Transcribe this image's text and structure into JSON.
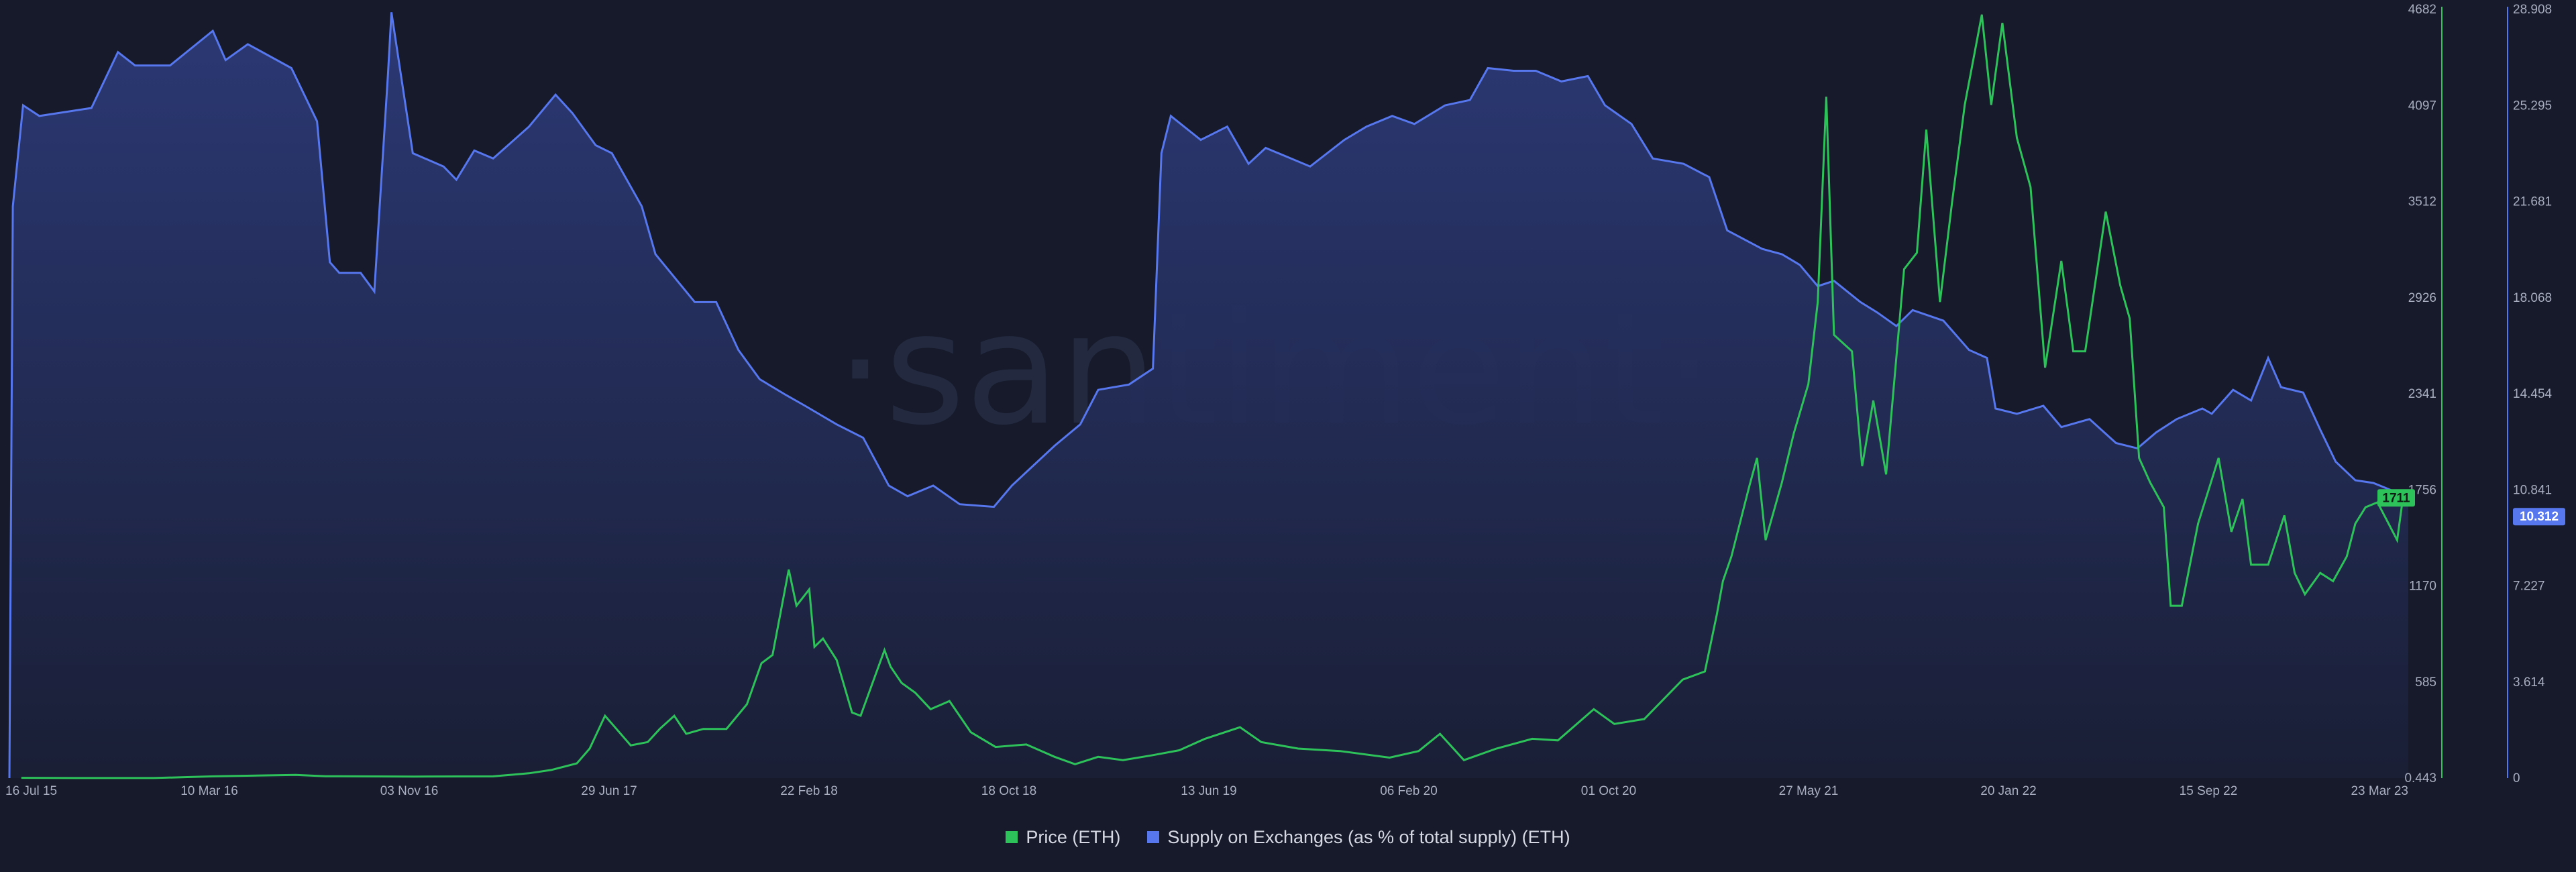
{
  "colors": {
    "background": "#161a2a",
    "price": "#2ec35a",
    "supply": "#5777ee",
    "axis_price": "#2ec35a",
    "axis_supply": "#5777ee",
    "watermark": "#232a40"
  },
  "watermark": "·santiment·",
  "chart_data": {
    "type": "line",
    "x_ticks": [
      "16 Jul 15",
      "10 Mar 16",
      "03 Nov 16",
      "29 Jun 17",
      "22 Feb 18",
      "18 Oct 18",
      "13 Jun 19",
      "06 Feb 20",
      "01 Oct 20",
      "27 May 21",
      "20 Jan 22",
      "15 Sep 22",
      "23 Mar 23"
    ],
    "y_left_ticks": [
      "4682",
      "4097",
      "3512",
      "2926",
      "2341",
      "1756",
      "1170",
      "585",
      "0.443"
    ],
    "y_right_ticks": [
      "28.908",
      "25.295",
      "21.681",
      "18.068",
      "14.454",
      "10.841",
      "7.227",
      "3.614",
      "0"
    ],
    "y_left_range": [
      0.443,
      4682
    ],
    "y_right_range": [
      0,
      28.908
    ],
    "x_range": [
      "2015-07-16",
      "2023-03-23"
    ],
    "current_values": {
      "price": "1711",
      "supply": "10.312"
    },
    "series": [
      {
        "name": "Price (ETH)",
        "axis": "left",
        "color": "#2ec35a",
        "points": [
          [
            "2015-07-30",
            2
          ],
          [
            "2015-10-01",
            1
          ],
          [
            "2016-01-01",
            1
          ],
          [
            "2016-03-10",
            11
          ],
          [
            "2016-06-15",
            20
          ],
          [
            "2016-07-20",
            12
          ],
          [
            "2016-11-01",
            10
          ],
          [
            "2017-02-01",
            11
          ],
          [
            "2017-03-15",
            30
          ],
          [
            "2017-04-10",
            50
          ],
          [
            "2017-05-10",
            90
          ],
          [
            "2017-05-25",
            180
          ],
          [
            "2017-06-12",
            380
          ],
          [
            "2017-06-22",
            320
          ],
          [
            "2017-07-12",
            200
          ],
          [
            "2017-08-01",
            220
          ],
          [
            "2017-08-15",
            300
          ],
          [
            "2017-09-01",
            380
          ],
          [
            "2017-09-15",
            270
          ],
          [
            "2017-10-05",
            300
          ],
          [
            "2017-11-01",
            300
          ],
          [
            "2017-11-25",
            450
          ],
          [
            "2017-12-12",
            700
          ],
          [
            "2017-12-25",
            750
          ],
          [
            "2018-01-13",
            1270
          ],
          [
            "2018-01-22",
            1050
          ],
          [
            "2018-02-06",
            1150
          ],
          [
            "2018-02-12",
            800
          ],
          [
            "2018-02-22",
            850
          ],
          [
            "2018-03-10",
            720
          ],
          [
            "2018-03-28",
            400
          ],
          [
            "2018-04-07",
            380
          ],
          [
            "2018-05-05",
            780
          ],
          [
            "2018-05-12",
            680
          ],
          [
            "2018-05-25",
            580
          ],
          [
            "2018-06-10",
            520
          ],
          [
            "2018-06-28",
            420
          ],
          [
            "2018-07-20",
            470
          ],
          [
            "2018-08-14",
            280
          ],
          [
            "2018-09-12",
            190
          ],
          [
            "2018-10-18",
            205
          ],
          [
            "2018-11-20",
            130
          ],
          [
            "2018-12-14",
            85
          ],
          [
            "2019-01-10",
            130
          ],
          [
            "2019-02-08",
            110
          ],
          [
            "2019-03-15",
            140
          ],
          [
            "2019-04-15",
            170
          ],
          [
            "2019-05-15",
            240
          ],
          [
            "2019-06-25",
            310
          ],
          [
            "2019-07-20",
            220
          ],
          [
            "2019-09-01",
            180
          ],
          [
            "2019-10-20",
            165
          ],
          [
            "2019-12-17",
            125
          ],
          [
            "2020-01-20",
            165
          ],
          [
            "2020-02-14",
            270
          ],
          [
            "2020-03-13",
            110
          ],
          [
            "2020-04-20",
            180
          ],
          [
            "2020-06-01",
            240
          ],
          [
            "2020-07-01",
            230
          ],
          [
            "2020-08-12",
            420
          ],
          [
            "2020-09-05",
            330
          ],
          [
            "2020-10-10",
            360
          ],
          [
            "2020-11-24",
            600
          ],
          [
            "2020-12-20",
            650
          ],
          [
            "2021-01-03",
            1000
          ],
          [
            "2021-01-10",
            1200
          ],
          [
            "2021-01-20",
            1350
          ],
          [
            "2021-02-10",
            1780
          ],
          [
            "2021-02-19",
            1950
          ],
          [
            "2021-03-01",
            1450
          ],
          [
            "2021-03-20",
            1800
          ],
          [
            "2021-04-03",
            2100
          ],
          [
            "2021-04-20",
            2400
          ],
          [
            "2021-05-01",
            2900
          ],
          [
            "2021-05-11",
            4150
          ],
          [
            "2021-05-20",
            2700
          ],
          [
            "2021-06-10",
            2600
          ],
          [
            "2021-06-22",
            1900
          ],
          [
            "2021-07-05",
            2300
          ],
          [
            "2021-07-20",
            1850
          ],
          [
            "2021-08-10",
            3100
          ],
          [
            "2021-08-25",
            3200
          ],
          [
            "2021-09-05",
            3950
          ],
          [
            "2021-09-21",
            2900
          ],
          [
            "2021-10-05",
            3500
          ],
          [
            "2021-10-20",
            4100
          ],
          [
            "2021-11-09",
            4650
          ],
          [
            "2021-11-20",
            4100
          ],
          [
            "2021-12-03",
            4600
          ],
          [
            "2021-12-20",
            3900
          ],
          [
            "2022-01-05",
            3600
          ],
          [
            "2022-01-22",
            2500
          ],
          [
            "2022-02-10",
            3150
          ],
          [
            "2022-02-24",
            2600
          ],
          [
            "2022-03-10",
            2600
          ],
          [
            "2022-04-03",
            3450
          ],
          [
            "2022-04-20",
            3000
          ],
          [
            "2022-05-01",
            2800
          ],
          [
            "2022-05-12",
            1950
          ],
          [
            "2022-05-25",
            1800
          ],
          [
            "2022-06-10",
            1650
          ],
          [
            "2022-06-18",
            1050
          ],
          [
            "2022-07-01",
            1050
          ],
          [
            "2022-07-20",
            1550
          ],
          [
            "2022-08-13",
            1950
          ],
          [
            "2022-08-28",
            1500
          ],
          [
            "2022-09-10",
            1700
          ],
          [
            "2022-09-20",
            1300
          ],
          [
            "2022-10-10",
            1300
          ],
          [
            "2022-10-29",
            1600
          ],
          [
            "2022-11-10",
            1250
          ],
          [
            "2022-11-22",
            1120
          ],
          [
            "2022-12-10",
            1250
          ],
          [
            "2022-12-25",
            1200
          ],
          [
            "2023-01-10",
            1350
          ],
          [
            "2023-01-20",
            1550
          ],
          [
            "2023-02-01",
            1650
          ],
          [
            "2023-02-15",
            1680
          ],
          [
            "2023-03-10",
            1450
          ],
          [
            "2023-03-16",
            1680
          ],
          [
            "2023-03-23",
            1711
          ]
        ]
      },
      {
        "name": "Supply on Exchanges (as % of total supply) (ETH)",
        "axis": "right",
        "color": "#5777ee",
        "points": [
          [
            "2015-07-16",
            0
          ],
          [
            "2015-07-20",
            21.5
          ],
          [
            "2015-08-01",
            25.3
          ],
          [
            "2015-08-20",
            24.9
          ],
          [
            "2015-10-20",
            25.2
          ],
          [
            "2015-11-20",
            27.3
          ],
          [
            "2015-12-10",
            26.8
          ],
          [
            "2016-01-20",
            26.8
          ],
          [
            "2016-03-10",
            28.1
          ],
          [
            "2016-03-25",
            27.0
          ],
          [
            "2016-04-20",
            27.6
          ],
          [
            "2016-06-10",
            26.7
          ],
          [
            "2016-07-10",
            24.7
          ],
          [
            "2016-07-25",
            19.4
          ],
          [
            "2016-08-05",
            19.0
          ],
          [
            "2016-08-30",
            19.0
          ],
          [
            "2016-09-15",
            18.3
          ],
          [
            "2016-10-01",
            26.5
          ],
          [
            "2016-10-05",
            28.8
          ],
          [
            "2016-10-30",
            23.5
          ],
          [
            "2016-12-05",
            23.0
          ],
          [
            "2016-12-20",
            22.5
          ],
          [
            "2017-01-10",
            23.6
          ],
          [
            "2017-02-01",
            23.3
          ],
          [
            "2017-03-15",
            24.5
          ],
          [
            "2017-04-15",
            25.7
          ],
          [
            "2017-05-05",
            25.0
          ],
          [
            "2017-06-01",
            23.8
          ],
          [
            "2017-06-20",
            23.5
          ],
          [
            "2017-07-25",
            21.5
          ],
          [
            "2017-08-10",
            19.7
          ],
          [
            "2017-09-25",
            17.9
          ],
          [
            "2017-10-20",
            17.9
          ],
          [
            "2017-11-15",
            16.1
          ],
          [
            "2017-12-10",
            15.0
          ],
          [
            "2018-01-10",
            14.4
          ],
          [
            "2018-02-01",
            14.0
          ],
          [
            "2018-03-10",
            13.3
          ],
          [
            "2018-04-10",
            12.8
          ],
          [
            "2018-05-10",
            11.0
          ],
          [
            "2018-06-01",
            10.6
          ],
          [
            "2018-07-01",
            11.0
          ],
          [
            "2018-08-01",
            10.3
          ],
          [
            "2018-09-10",
            10.2
          ],
          [
            "2018-10-01",
            11.0
          ],
          [
            "2018-11-20",
            12.5
          ],
          [
            "2018-12-20",
            13.3
          ],
          [
            "2019-01-10",
            14.6
          ],
          [
            "2019-02-15",
            14.8
          ],
          [
            "2019-03-15",
            15.4
          ],
          [
            "2019-03-25",
            23.5
          ],
          [
            "2019-04-05",
            24.9
          ],
          [
            "2019-05-10",
            24.0
          ],
          [
            "2019-06-10",
            24.5
          ],
          [
            "2019-07-05",
            23.1
          ],
          [
            "2019-07-25",
            23.7
          ],
          [
            "2019-09-15",
            23.0
          ],
          [
            "2019-10-25",
            24.0
          ],
          [
            "2019-11-20",
            24.5
          ],
          [
            "2019-12-20",
            24.9
          ],
          [
            "2020-01-15",
            24.6
          ],
          [
            "2020-02-20",
            25.3
          ],
          [
            "2020-03-20",
            25.5
          ],
          [
            "2020-04-10",
            26.7
          ],
          [
            "2020-05-10",
            26.6
          ],
          [
            "2020-06-05",
            26.6
          ],
          [
            "2020-07-05",
            26.2
          ],
          [
            "2020-08-05",
            26.4
          ],
          [
            "2020-08-25",
            25.3
          ],
          [
            "2020-09-25",
            24.6
          ],
          [
            "2020-10-20",
            23.3
          ],
          [
            "2020-11-25",
            23.1
          ],
          [
            "2020-12-25",
            22.6
          ],
          [
            "2021-01-15",
            20.6
          ],
          [
            "2021-02-25",
            19.9
          ],
          [
            "2021-03-20",
            19.7
          ],
          [
            "2021-04-10",
            19.3
          ],
          [
            "2021-05-01",
            18.5
          ],
          [
            "2021-05-20",
            18.7
          ],
          [
            "2021-06-20",
            17.9
          ],
          [
            "2021-07-10",
            17.5
          ],
          [
            "2021-08-01",
            17.0
          ],
          [
            "2021-08-20",
            17.6
          ],
          [
            "2021-09-25",
            17.2
          ],
          [
            "2021-10-25",
            16.1
          ],
          [
            "2021-11-15",
            15.8
          ],
          [
            "2021-11-25",
            13.9
          ],
          [
            "2021-12-20",
            13.7
          ],
          [
            "2022-01-20",
            14.0
          ],
          [
            "2022-02-10",
            13.2
          ],
          [
            "2022-03-15",
            13.5
          ],
          [
            "2022-04-15",
            12.6
          ],
          [
            "2022-05-10",
            12.4
          ],
          [
            "2022-06-01",
            13.0
          ],
          [
            "2022-06-25",
            13.5
          ],
          [
            "2022-07-25",
            13.9
          ],
          [
            "2022-08-05",
            13.7
          ],
          [
            "2022-08-30",
            14.6
          ],
          [
            "2022-09-20",
            14.2
          ],
          [
            "2022-10-10",
            15.8
          ],
          [
            "2022-10-25",
            14.7
          ],
          [
            "2022-11-20",
            14.5
          ],
          [
            "2022-12-10",
            13.1
          ],
          [
            "2022-12-28",
            11.9
          ],
          [
            "2023-01-20",
            11.2
          ],
          [
            "2023-02-10",
            11.1
          ],
          [
            "2023-03-05",
            10.8
          ],
          [
            "2023-03-23",
            10.312
          ]
        ]
      }
    ]
  }
}
